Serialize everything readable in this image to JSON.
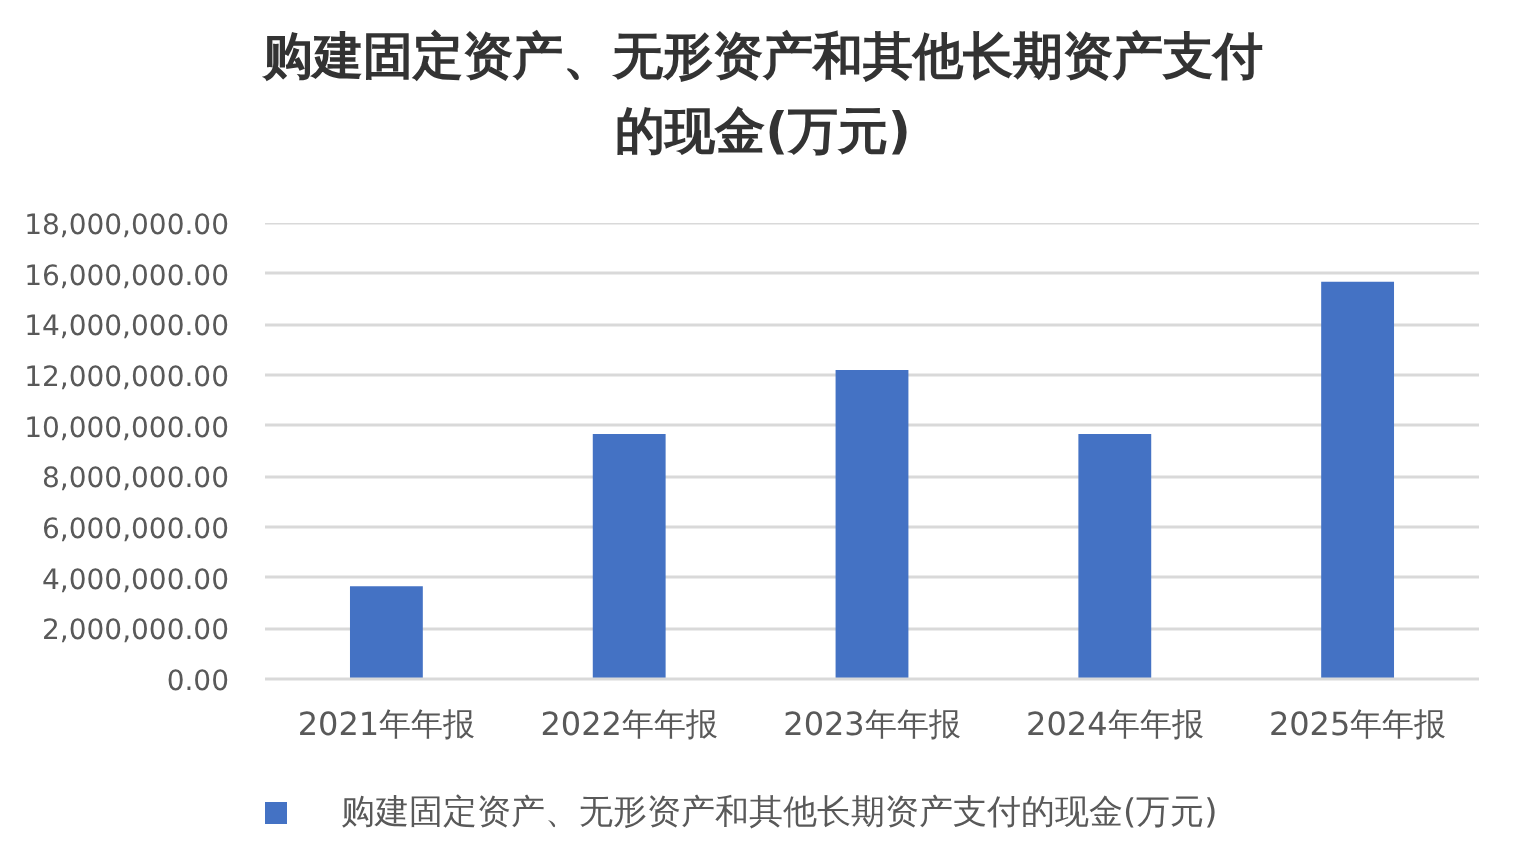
{
  "chart_data": {
    "type": "bar",
    "title": "购建固定资产、无形资产和其他长期资产支付的现金(万元)",
    "categories": [
      "2021年年报",
      "2022年年报",
      "2023年年报",
      "2024年年报",
      "2025年年报"
    ],
    "series": [
      {
        "name": "购建固定资产、无形资产和其他长期资产支付的现金(万元)",
        "color": "#4472c4",
        "values": [
          3660000,
          9670000,
          12200000,
          9670000,
          15680000
        ]
      }
    ],
    "ylim": [
      0,
      18000000
    ],
    "yticks": [
      {
        "value": 0,
        "label": "0.00"
      },
      {
        "value": 2000000,
        "label": "2,000,000.00"
      },
      {
        "value": 4000000,
        "label": "4,000,000.00"
      },
      {
        "value": 6000000,
        "label": "6,000,000.00"
      },
      {
        "value": 8000000,
        "label": "8,000,000.00"
      },
      {
        "value": 10000000,
        "label": "10,000,000.00"
      },
      {
        "value": 12000000,
        "label": "12,000,000.00"
      },
      {
        "value": 14000000,
        "label": "14,000,000.00"
      },
      {
        "value": 16000000,
        "label": "16,000,000.00"
      },
      {
        "value": 18000000,
        "label": "18,000,000.00"
      }
    ],
    "grid": "y",
    "legend": "bottom"
  }
}
